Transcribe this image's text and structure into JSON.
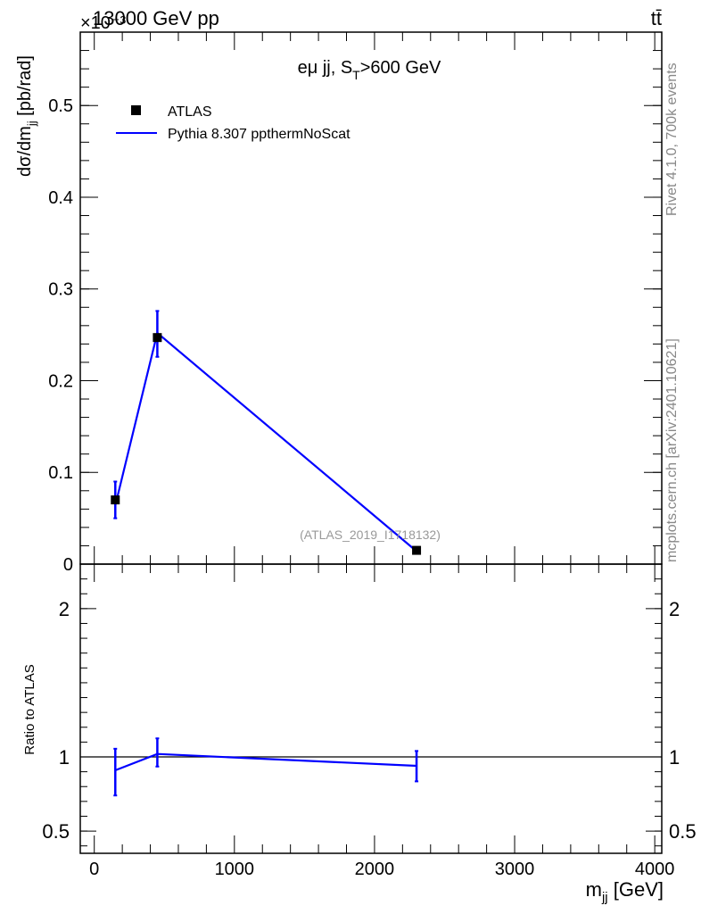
{
  "header": {
    "left": "13000 GeV pp",
    "right": "tt̄",
    "exponent": "×10⁻³"
  },
  "side_labels": {
    "rivet": "Rivet 4.1.0,  700k events",
    "mcplots": "mcplots.cern.ch [arXiv:2401.10621]"
  },
  "chart_data": [
    {
      "type": "line",
      "title": "eμ jj, S_T>600 GeV",
      "watermark": "(ATLAS_2019_I1718132)",
      "xlabel": "m_jj [GeV]",
      "ylabel": "dσ/dm_jj [pb/rad]",
      "y_scale_label": "×10⁻³",
      "xlim": [
        -100,
        4050
      ],
      "ylim": [
        0,
        0.00058
      ],
      "xticks": [
        0,
        1000,
        2000,
        3000,
        4000
      ],
      "yticks": [
        0.1,
        0.2,
        0.3,
        0.4,
        0.5
      ],
      "ytick_labels": [
        "0.1",
        "0.2",
        "0.3",
        "0.4",
        "0.5"
      ],
      "ytick_zero_label": "0",
      "legend_position": "top-left",
      "series": [
        {
          "name": "ATLAS",
          "kind": "points",
          "color": "#000000",
          "x": [
            150,
            450,
            2300
          ],
          "y": [
            7e-05,
            0.000247,
            1.5e-05
          ],
          "yerr_low": [
            2e-05,
            2.1e-05,
            3e-06
          ],
          "yerr_high": [
            2e-05,
            2.9e-05,
            3e-06
          ]
        },
        {
          "name": "Pythia 8.307 ppthermNoScat",
          "kind": "line",
          "color": "#0000ff",
          "x": [
            150,
            450,
            2300
          ],
          "y": [
            6.4e-05,
            0.000252,
            1.4e-05
          ]
        }
      ]
    },
    {
      "type": "line",
      "ylabel": "Ratio to ATLAS",
      "xlabel": "m_jj [GeV]",
      "xlim": [
        -100,
        4050
      ],
      "ylim": [
        0.35,
        2.3
      ],
      "yticks": [
        0.5,
        1,
        2
      ],
      "ytick_labels": [
        "0.5",
        "1",
        "2"
      ],
      "xticks": [
        0,
        1000,
        2000,
        3000,
        4000
      ],
      "xtick_labels": [
        "0",
        "1000",
        "2000",
        "3000",
        "4000"
      ],
      "reference_line": 1,
      "series": [
        {
          "name": "Pythia 8.307 ppthermNoScat",
          "color": "#0000ff",
          "x": [
            150,
            450,
            2300
          ],
          "y": [
            0.91,
            1.02,
            0.94
          ],
          "yerr_low": [
            0.17,
            0.085,
            0.105
          ],
          "yerr_high": [
            0.145,
            0.105,
            0.1
          ]
        }
      ]
    }
  ]
}
